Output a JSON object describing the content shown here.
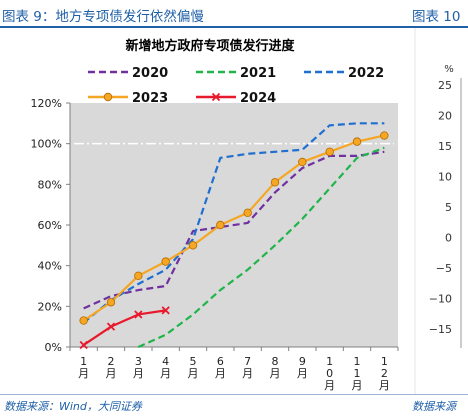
{
  "figure": {
    "left_caption": "图表 9：地方专项债发行依然偏慢",
    "right_caption": "图表 10",
    "left_source": "数据来源：Wind，大同证券",
    "right_source": "数据来源"
  },
  "chart_data": [
    {
      "type": "line",
      "title": "新增地方政府专项债发行进度",
      "xlabel": "",
      "ylabel": "",
      "categories": [
        "1月",
        "2月",
        "3月",
        "4月",
        "5月",
        "6月",
        "7月",
        "8月",
        "9月",
        "10月",
        "11月",
        "12月"
      ],
      "ylim": [
        0,
        120
      ],
      "yticks": [
        0,
        20,
        40,
        60,
        80,
        100,
        120
      ],
      "ytick_labels": [
        "0%",
        "20%",
        "40%",
        "60%",
        "80%",
        "100%",
        "120%"
      ],
      "reference_line": 100,
      "grid": false,
      "plot_background": "#d9d9d9",
      "legend_position": "top",
      "series": [
        {
          "name": "2020",
          "color": "#7030a0",
          "dash": "dashed",
          "marker": "none",
          "values": [
            19,
            25,
            28,
            30,
            57,
            59,
            61,
            76,
            88,
            94,
            94,
            96
          ]
        },
        {
          "name": "2021",
          "color": "#1fb54a",
          "dash": "dashed",
          "marker": "none",
          "values": [
            null,
            null,
            0,
            6,
            16,
            28,
            38,
            50,
            63,
            78,
            93,
            98
          ]
        },
        {
          "name": "2022",
          "color": "#1f6fd1",
          "dash": "dashed",
          "marker": "none",
          "values": [
            12,
            23,
            31,
            38,
            53,
            93,
            95,
            96,
            97,
            109,
            110,
            110
          ]
        },
        {
          "name": "2023",
          "color": "#f5a623",
          "dash": "solid",
          "marker": "circle",
          "values": [
            13,
            22,
            35,
            42,
            50,
            60,
            66,
            81,
            91,
            96,
            101,
            104
          ]
        },
        {
          "name": "2024",
          "color": "#e8192c",
          "dash": "solid",
          "marker": "x",
          "values": [
            1,
            10,
            16,
            18,
            null,
            null,
            null,
            null,
            null,
            null,
            null,
            null
          ]
        }
      ]
    },
    {
      "type": "line",
      "title": "",
      "yunit": "%",
      "ylim": [
        -15,
        25
      ],
      "yticks": [
        25,
        20,
        15,
        10,
        5,
        0,
        -5,
        -10,
        -15
      ],
      "ytick_labels": [
        "25",
        "20",
        "15",
        "10",
        "5",
        "0",
        "−5",
        "−10",
        "−15"
      ],
      "series": []
    }
  ]
}
